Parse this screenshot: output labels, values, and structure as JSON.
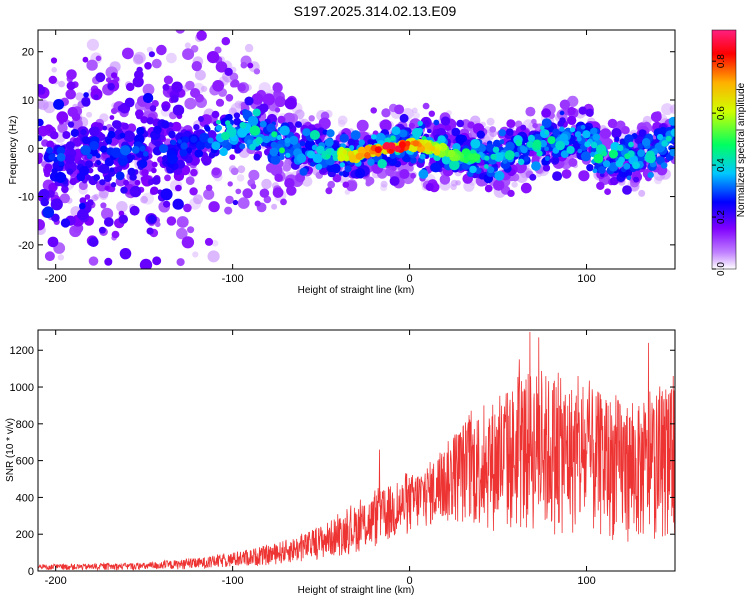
{
  "title": "S197.2025.314.02.13.E09",
  "chart_data": [
    {
      "type": "heatmap",
      "xlabel": "Height of straight line (km)",
      "ylabel": "Frequency (Hz)",
      "xlim": [
        -210,
        150
      ],
      "ylim": [
        -25,
        24.5
      ],
      "xticks": [
        -200,
        -100,
        0,
        100
      ],
      "yticks": [
        -20,
        -10,
        0,
        10,
        20
      ],
      "ridge": [
        {
          "x": -205,
          "y": -2
        },
        {
          "x": -180,
          "y": -1
        },
        {
          "x": -150,
          "y": 0
        },
        {
          "x": -120,
          "y": 1
        },
        {
          "x": -100,
          "y": 3
        },
        {
          "x": -90,
          "y": 4
        },
        {
          "x": -75,
          "y": 1
        },
        {
          "x": -60,
          "y": 0
        },
        {
          "x": -45,
          "y": -1
        },
        {
          "x": -30,
          "y": -1.5
        },
        {
          "x": -15,
          "y": 0
        },
        {
          "x": 0,
          "y": 0.8
        },
        {
          "x": 15,
          "y": 0
        },
        {
          "x": 30,
          "y": -1.5
        },
        {
          "x": 45,
          "y": -2
        },
        {
          "x": 60,
          "y": -1
        },
        {
          "x": 80,
          "y": 1.5
        },
        {
          "x": 95,
          "y": 2
        },
        {
          "x": 110,
          "y": -1
        },
        {
          "x": 125,
          "y": -2
        },
        {
          "x": 140,
          "y": 0
        },
        {
          "x": 150,
          "y": 3
        }
      ],
      "peak": {
        "x": -10,
        "y": 0.5,
        "amplitude": 1.0
      }
    },
    {
      "type": "line",
      "xlabel": "Height of straight line (km)",
      "ylabel": "SNR (10 * v/v)",
      "xlim": [
        -210,
        150
      ],
      "ylim": [
        0,
        1310
      ],
      "xticks": [
        -200,
        -100,
        0,
        100
      ],
      "yticks": [
        0,
        200,
        400,
        600,
        800,
        1000,
        1200
      ],
      "color": "#ee3333",
      "envelope": [
        {
          "x": -210,
          "lo": 5,
          "hi": 35
        },
        {
          "x": -150,
          "lo": 5,
          "hi": 45
        },
        {
          "x": -120,
          "lo": 10,
          "hi": 70
        },
        {
          "x": -100,
          "lo": 20,
          "hi": 100
        },
        {
          "x": -80,
          "lo": 30,
          "hi": 140
        },
        {
          "x": -60,
          "lo": 50,
          "hi": 200
        },
        {
          "x": -40,
          "lo": 80,
          "hi": 300
        },
        {
          "x": -20,
          "lo": 120,
          "hi": 420
        },
        {
          "x": 0,
          "lo": 200,
          "hi": 520
        },
        {
          "x": 15,
          "lo": 250,
          "hi": 620
        },
        {
          "x": 30,
          "lo": 250,
          "hi": 820
        },
        {
          "x": 50,
          "lo": 200,
          "hi": 950
        },
        {
          "x": 70,
          "lo": 200,
          "hi": 1100
        },
        {
          "x": 100,
          "lo": 180,
          "hi": 1000
        },
        {
          "x": 130,
          "lo": 150,
          "hi": 900
        },
        {
          "x": 150,
          "lo": 200,
          "hi": 1000
        }
      ],
      "peaks": [
        {
          "x": -17,
          "y": 660
        },
        {
          "x": 62,
          "y": 1150
        },
        {
          "x": 68,
          "y": 1300
        },
        {
          "x": 73,
          "y": 1270
        },
        {
          "x": 135,
          "y": 1240
        },
        {
          "x": 149,
          "y": 1060
        }
      ]
    }
  ],
  "colorbar": {
    "label": "Normalized spectral amplitude",
    "range": [
      0,
      0.92
    ],
    "ticks": [
      "0.0",
      "0.2",
      "0.4",
      "0.6",
      "0.8"
    ],
    "stops": [
      "#ffffff",
      "#a020f0",
      "#0000ff",
      "#00e0e0",
      "#00ff00",
      "#ffff00",
      "#ff0000",
      "#ff1493"
    ]
  }
}
